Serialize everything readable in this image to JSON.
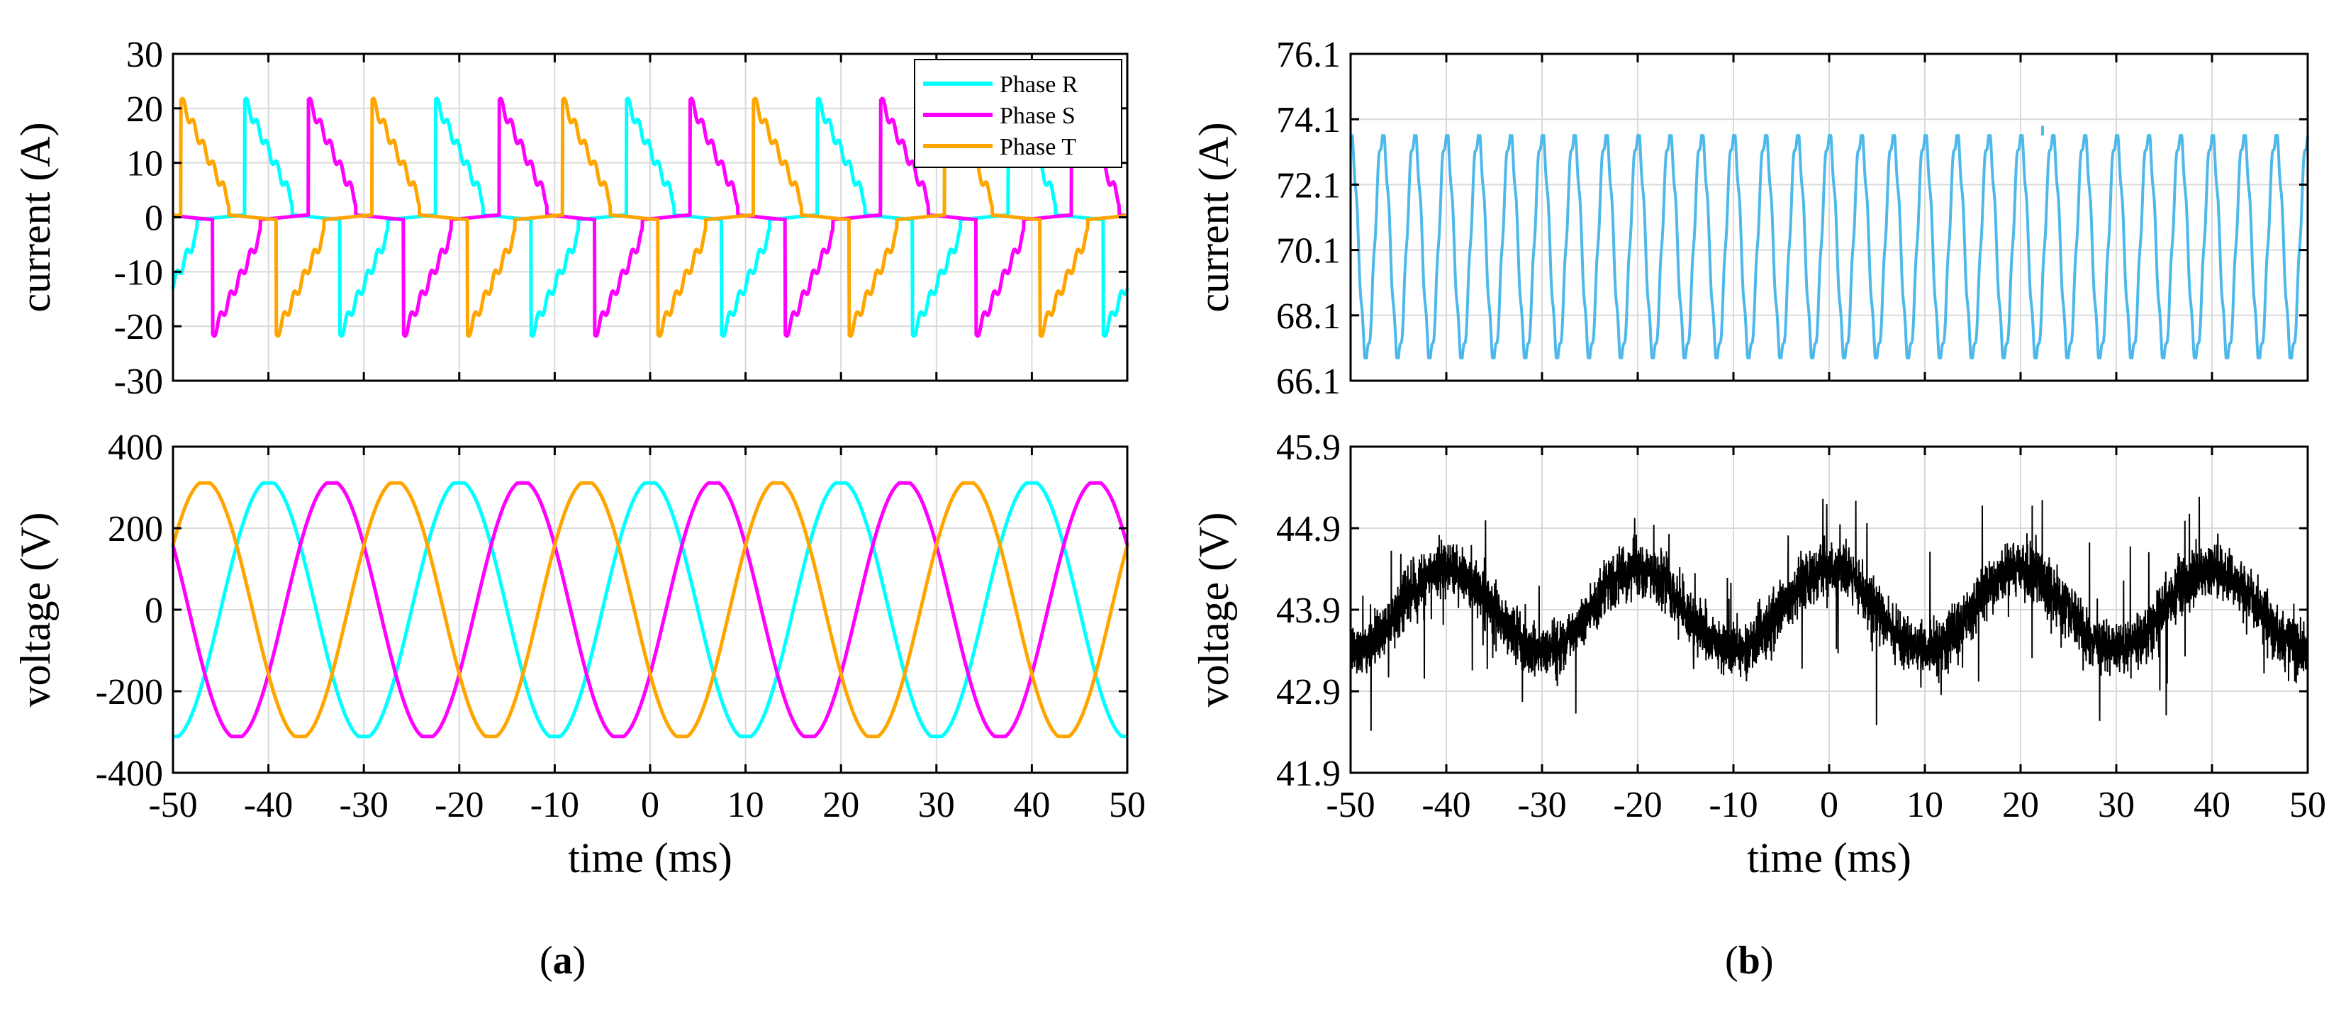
{
  "colors": {
    "phase_r": "#00ffff",
    "phase_s": "#ff00ff",
    "phase_t": "#ffa500",
    "dc_current": "#4db8ea",
    "dc_voltage": "#000000",
    "axis": "#000000",
    "grid": "#d9d9d9"
  },
  "panel_labels": {
    "a": "a",
    "b": "b"
  },
  "chart_data": [
    {
      "id": "a-top",
      "type": "line",
      "xlabel": "",
      "ylabel": "current (A)",
      "xlim": [
        -50,
        50
      ],
      "ylim": [
        -30,
        30
      ],
      "yticks": [
        -30,
        -20,
        -10,
        0,
        10,
        20,
        30
      ],
      "xticks": [
        -50,
        -40,
        -30,
        -20,
        -10,
        0,
        10,
        20,
        30,
        40,
        50
      ],
      "show_xticklabels": false,
      "grid": true,
      "legend": "top-right",
      "waveform": {
        "kind": "three-phase-rectifier-current",
        "period_ms": 20,
        "peak": 21.5,
        "phases_deg": {
          "Phase R": 90,
          "Phase S": -30,
          "Phase T": 210
        }
      },
      "series": [
        {
          "name": "Phase R",
          "color_key": "phase_r"
        },
        {
          "name": "Phase S",
          "color_key": "phase_s"
        },
        {
          "name": "Phase T",
          "color_key": "phase_t"
        }
      ]
    },
    {
      "id": "a-bottom",
      "type": "line",
      "xlabel": "time (ms)",
      "ylabel": "voltage (V)",
      "xlim": [
        -50,
        50
      ],
      "ylim": [
        -400,
        400
      ],
      "yticks": [
        -400,
        -200,
        0,
        200,
        400
      ],
      "xticks": [
        -50,
        -40,
        -30,
        -20,
        -10,
        0,
        10,
        20,
        30,
        40,
        50
      ],
      "show_xticklabels": true,
      "grid": true,
      "waveform": {
        "kind": "three-phase-sine-flattened",
        "period_ms": 20,
        "amplitude": 311,
        "clip": 0.985,
        "phases_deg": {
          "R": 90,
          "S": -30,
          "T": 210
        }
      },
      "series": [
        {
          "color_key": "phase_r"
        },
        {
          "color_key": "phase_s"
        },
        {
          "color_key": "phase_t"
        }
      ]
    },
    {
      "id": "b-top",
      "type": "line",
      "xlabel": "",
      "ylabel": "current (A)",
      "xlim": [
        -50,
        50
      ],
      "ylim": [
        66.1,
        76.1
      ],
      "yticks": [
        66.1,
        68.1,
        70.1,
        72.1,
        74.1,
        76.1
      ],
      "xticks": [
        -50,
        -40,
        -30,
        -20,
        -10,
        0,
        10,
        20,
        30,
        40,
        50
      ],
      "show_xticklabels": false,
      "grid": true,
      "waveform": {
        "kind": "dc-ripple",
        "period_ms": 3.333,
        "min": 66.8,
        "max": 73.6,
        "spike": {
          "x": 22.3,
          "y": 73.9
        }
      },
      "series": [
        {
          "color_key": "dc_current"
        }
      ]
    },
    {
      "id": "b-bottom",
      "type": "line",
      "xlabel": "time (ms)",
      "ylabel": "voltage (V)",
      "xlim": [
        -50,
        50
      ],
      "ylim": [
        41.9,
        45.9
      ],
      "yticks": [
        41.9,
        42.9,
        43.9,
        44.9,
        45.9
      ],
      "xticks": [
        -50,
        -40,
        -30,
        -20,
        -10,
        0,
        10,
        20,
        30,
        40,
        50
      ],
      "show_xticklabels": true,
      "grid": true,
      "waveform": {
        "kind": "noisy-sine",
        "period_ms": 20,
        "mean": 43.9,
        "amplitude": 0.5,
        "peak_at_ms": -40
      },
      "series": [
        {
          "color_key": "dc_voltage"
        }
      ]
    }
  ]
}
